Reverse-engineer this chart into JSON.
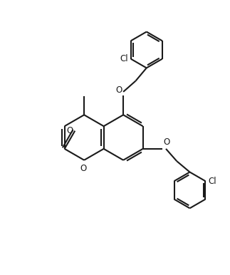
{
  "bg_color": "#ffffff",
  "line_color": "#1a1a1a",
  "line_width": 1.5,
  "fig_width": 3.23,
  "fig_height": 3.86,
  "dpi": 100,
  "xlim": [
    -4.5,
    5.5
  ],
  "ylim": [
    -5.5,
    5.5
  ],
  "label_fontsize": 8.5
}
